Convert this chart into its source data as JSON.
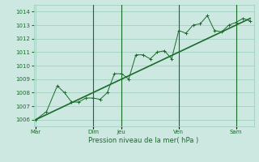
{
  "xlabel": "Pression niveau de la mer( hPa )",
  "bg_color": "#cce8e0",
  "grid_color": "#99ccbb",
  "line_color": "#1a6b2a",
  "ylim": [
    1005.5,
    1014.5
  ],
  "yticks": [
    1006,
    1007,
    1008,
    1009,
    1010,
    1011,
    1012,
    1013,
    1014
  ],
  "day_labels": [
    "Mar",
    "Dim",
    "Jeu",
    "Ven",
    "Sam"
  ],
  "day_positions": [
    0,
    8,
    12,
    20,
    28
  ],
  "vline_positions": [
    8,
    12,
    20,
    28
  ],
  "xlim": [
    -0.3,
    30.5
  ],
  "series1_x": [
    0,
    1.5,
    3,
    4,
    5,
    6,
    7,
    8,
    9,
    10,
    11,
    12,
    13,
    14,
    15,
    16,
    17,
    18,
    19,
    20,
    21,
    22,
    23,
    24,
    25,
    26,
    27,
    28,
    29,
    30
  ],
  "series1_y": [
    1006.0,
    1006.6,
    1008.5,
    1008.0,
    1007.3,
    1007.3,
    1007.6,
    1007.6,
    1007.5,
    1008.0,
    1009.4,
    1009.4,
    1009.0,
    1010.8,
    1010.8,
    1010.5,
    1011.0,
    1011.1,
    1010.5,
    1012.6,
    1012.4,
    1013.0,
    1013.1,
    1013.7,
    1012.6,
    1012.5,
    1013.0,
    1013.2,
    1013.5,
    1013.3
  ],
  "series2_x": [
    0,
    30
  ],
  "series2_y": [
    1006.0,
    1013.5
  ],
  "tick_labelsize": 5,
  "xlabel_fontsize": 6
}
